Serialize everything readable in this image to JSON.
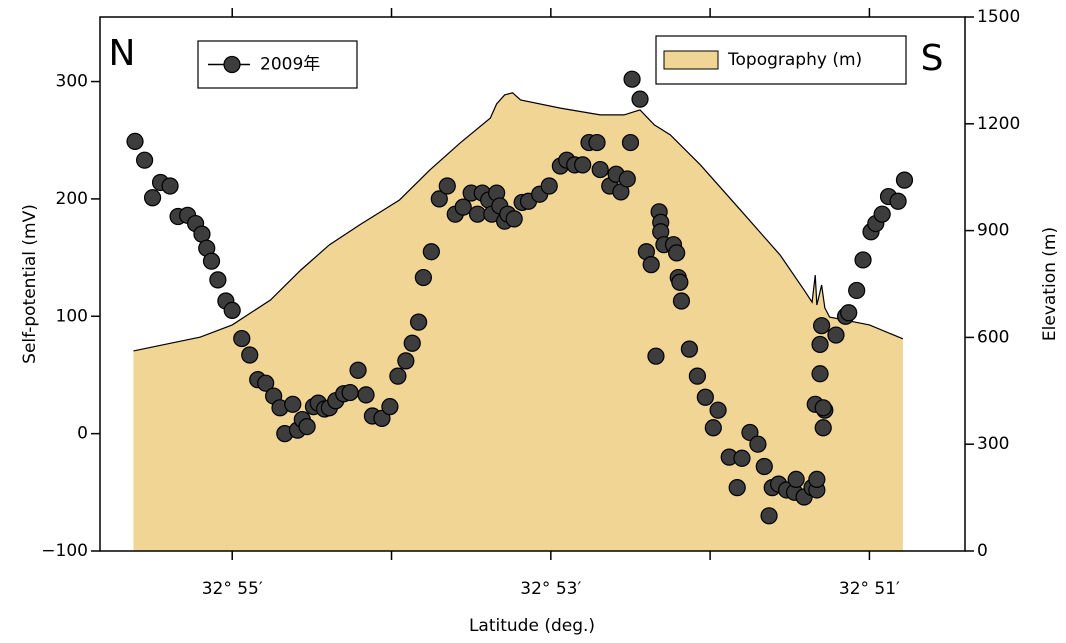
{
  "chart_data": {
    "type": "scatter",
    "xlabel": "Latitude (deg.)",
    "ylabel": "Self-potential (mV)",
    "y2label": "Elevation (m)",
    "annotations": [
      "N",
      "S"
    ],
    "xlim": [
      55.83,
      50.4
    ],
    "xticks": [
      {
        "value": 55,
        "label": "32° 55′"
      },
      {
        "value": 53,
        "label": "32° 53′"
      },
      {
        "value": 51,
        "label": "32° 51′"
      }
    ],
    "xminorticks": [
      54,
      52
    ],
    "ylim": [
      -100,
      355
    ],
    "yticks": [
      {
        "value": -100,
        "label": "−100"
      },
      0,
      100,
      200,
      300
    ],
    "y2lim": [
      0,
      1500
    ],
    "y2ticks": [
      0,
      300,
      600,
      900,
      1200,
      1500
    ],
    "series": [
      {
        "name": "2009年",
        "type": "scatter",
        "color": "#3d3d3d",
        "x": [
          55.61,
          55.55,
          55.5,
          55.45,
          55.39,
          55.34,
          55.28,
          55.23,
          55.19,
          55.16,
          55.13,
          55.09,
          55.04,
          55.0,
          54.94,
          54.89,
          54.84,
          54.79,
          54.74,
          54.7,
          54.67,
          54.62,
          54.59,
          54.56,
          54.53,
          54.49,
          54.46,
          54.42,
          54.39,
          54.35,
          54.3,
          54.26,
          54.21,
          54.16,
          54.12,
          54.06,
          54.01,
          53.96,
          53.91,
          53.87,
          53.83,
          53.8,
          53.75,
          53.7,
          53.65,
          53.6,
          53.55,
          53.5,
          53.46,
          53.43,
          53.39,
          53.37,
          53.34,
          53.32,
          53.29,
          53.27,
          53.23,
          53.18,
          53.14,
          53.07,
          53.01,
          52.94,
          52.9,
          52.85,
          52.8,
          52.76,
          52.71,
          52.69,
          52.63,
          52.59,
          52.56,
          52.52,
          52.5,
          52.49,
          52.44,
          52.4,
          52.37,
          52.34,
          52.32,
          52.31,
          52.31,
          52.29,
          52.23,
          52.21,
          52.2,
          52.19,
          52.18,
          52.13,
          52.08,
          52.03,
          51.95,
          51.98,
          51.88,
          51.83,
          51.8,
          51.75,
          51.7,
          51.66,
          51.63,
          51.61,
          51.57,
          51.52,
          51.47,
          51.46,
          51.41,
          51.36,
          51.33,
          51.33,
          51.34,
          51.31,
          51.31,
          51.3,
          51.28,
          51.29,
          51.29,
          51.21,
          51.15,
          51.13,
          51.08,
          51.04,
          50.99,
          50.96,
          50.92,
          50.88,
          50.82,
          50.78
        ],
        "values": [
          249,
          233,
          201,
          214,
          211,
          185,
          186,
          179,
          170,
          158,
          147,
          131,
          113,
          105,
          81,
          67,
          46,
          43,
          32,
          22,
          0,
          25,
          3,
          12,
          6,
          23,
          26,
          21,
          22,
          28,
          34,
          35,
          54,
          33,
          15,
          13,
          23,
          49,
          62,
          77,
          95,
          133,
          155,
          200,
          211,
          187,
          193,
          205,
          187,
          205,
          199,
          187,
          205,
          194,
          181,
          187,
          183,
          197,
          198,
          204,
          211,
          228,
          233,
          229,
          229,
          248,
          248,
          225,
          211,
          221,
          206,
          217,
          248,
          302,
          285,
          155,
          144,
          66,
          189,
          180,
          172,
          161,
          161,
          154,
          133,
          129,
          113,
          72,
          49,
          31,
          20,
          5,
          -20,
          -46,
          -21,
          1,
          -9,
          -28,
          -70,
          -46,
          -43,
          -48,
          -50,
          -39,
          -54,
          -46,
          -48,
          -39,
          25,
          51,
          76,
          92,
          20,
          5,
          22,
          84,
          100,
          103,
          122,
          148,
          172,
          179,
          187,
          202,
          198,
          216
        ]
      },
      {
        "name": "Topography (m)",
        "type": "area",
        "axis": "y2",
        "color": "#f0d595",
        "x": [
          55.62,
          55.2,
          55.0,
          54.76,
          54.57,
          54.39,
          54.2,
          53.95,
          53.76,
          53.57,
          53.38,
          53.34,
          53.29,
          53.24,
          53.19,
          52.94,
          52.69,
          52.54,
          52.44,
          52.35,
          52.25,
          52.06,
          51.81,
          51.56,
          51.41,
          51.36,
          51.34,
          51.33,
          51.3,
          51.28,
          51.25,
          51.0,
          50.79
        ],
        "values": [
          562,
          601,
          635,
          705,
          789,
          860,
          916,
          986,
          1070,
          1146,
          1216,
          1256,
          1281,
          1287,
          1267,
          1244,
          1225,
          1225,
          1239,
          1197,
          1169,
          1084,
          958,
          831,
          733,
          699,
          775,
          691,
          747,
          683,
          657,
          635,
          596
        ]
      }
    ]
  }
}
